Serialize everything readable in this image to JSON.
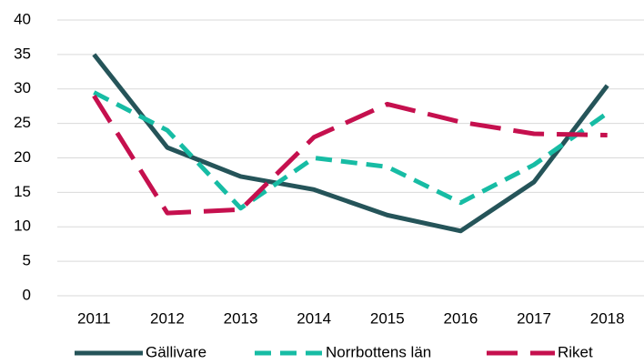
{
  "chart_data": {
    "type": "line",
    "categories": [
      "2011",
      "2012",
      "2013",
      "2014",
      "2015",
      "2016",
      "2017",
      "2018"
    ],
    "series": [
      {
        "name": "Gällivare",
        "color": "#255459",
        "values": [
          35,
          21.5,
          17.3,
          15.4,
          11.7,
          9.4,
          16.5,
          30.5
        ]
      },
      {
        "name": "Norrbottens län",
        "color": "#17bca4",
        "values": [
          29.5,
          24,
          12.7,
          20,
          18.7,
          13.5,
          19,
          26.5
        ]
      },
      {
        "name": "Riket",
        "color": "#c5104e",
        "values": [
          29,
          12,
          12.5,
          23,
          27.8,
          25.2,
          23.5,
          23.3
        ]
      }
    ],
    "ylim": [
      0,
      40
    ],
    "yticks": [
      0,
      5,
      10,
      15,
      20,
      25,
      30,
      35,
      40
    ],
    "grid": true,
    "legend": "bottom"
  }
}
